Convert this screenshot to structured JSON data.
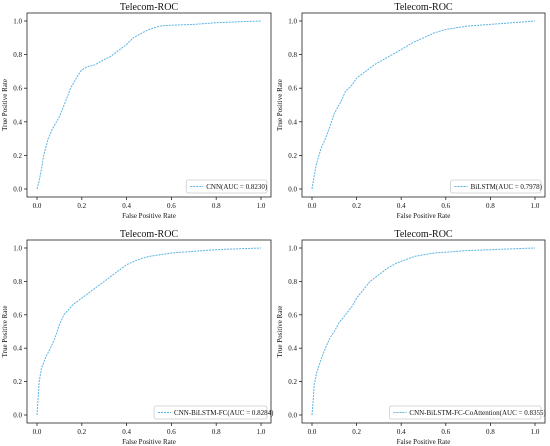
{
  "colors": {
    "curve": "#5ab4e5",
    "axis": "#222222",
    "legend_border": "#cccccc"
  },
  "chart_data": [
    {
      "type": "line",
      "title": "Telecom-ROC",
      "xlabel": "False Positive Rate",
      "ylabel": "True Positive Rate",
      "xlim": [
        0,
        1
      ],
      "ylim": [
        0,
        1
      ],
      "x_ticks": [
        "0.0",
        "0.2",
        "0.4",
        "0.6",
        "0.8",
        "1.0"
      ],
      "y_ticks": [
        "0.0",
        "0.2",
        "0.4",
        "0.6",
        "0.8",
        "1.0"
      ],
      "grid": false,
      "legend_position": "lower-right",
      "series": [
        {
          "name": "CNN(AUC = 0.8230)",
          "x": [
            0,
            0.01,
            0.02,
            0.03,
            0.05,
            0.07,
            0.1,
            0.13,
            0.15,
            0.18,
            0.2,
            0.23,
            0.26,
            0.3,
            0.33,
            0.36,
            0.4,
            0.43,
            0.47,
            0.5,
            0.55,
            0.6,
            0.7,
            0.8,
            0.9,
            1.0
          ],
          "y": [
            0,
            0.05,
            0.12,
            0.2,
            0.3,
            0.36,
            0.43,
            0.53,
            0.6,
            0.67,
            0.71,
            0.73,
            0.74,
            0.77,
            0.79,
            0.82,
            0.86,
            0.9,
            0.93,
            0.95,
            0.97,
            0.975,
            0.98,
            0.99,
            0.995,
            1.0
          ]
        }
      ]
    },
    {
      "type": "line",
      "title": "Telecom-ROC",
      "xlabel": "False Positive Rate",
      "ylabel": "True Positive Rate",
      "xlim": [
        0,
        1
      ],
      "ylim": [
        0,
        1
      ],
      "x_ticks": [
        "0.0",
        "0.2",
        "0.4",
        "0.6",
        "0.8",
        "1.0"
      ],
      "y_ticks": [
        "0.0",
        "0.2",
        "0.4",
        "0.6",
        "0.8",
        "1.0"
      ],
      "grid": false,
      "legend_position": "lower-right",
      "series": [
        {
          "name": "BiLSTM(AUC = 0.7978)",
          "x": [
            0,
            0.01,
            0.02,
            0.04,
            0.06,
            0.08,
            0.1,
            0.13,
            0.15,
            0.18,
            0.2,
            0.24,
            0.28,
            0.32,
            0.36,
            0.4,
            0.45,
            0.5,
            0.55,
            0.6,
            0.7,
            0.8,
            0.9,
            1.0
          ],
          "y": [
            0,
            0.08,
            0.15,
            0.24,
            0.3,
            0.37,
            0.45,
            0.52,
            0.58,
            0.62,
            0.66,
            0.7,
            0.74,
            0.77,
            0.8,
            0.83,
            0.87,
            0.9,
            0.93,
            0.95,
            0.97,
            0.98,
            0.99,
            1.0
          ]
        }
      ]
    },
    {
      "type": "line",
      "title": "Telecom-ROC",
      "xlabel": "False Positive Rate",
      "ylabel": "True Positive Rate",
      "xlim": [
        0,
        1
      ],
      "ylim": [
        0,
        1
      ],
      "x_ticks": [
        "0.0",
        "0.2",
        "0.4",
        "0.6",
        "0.8",
        "1.0"
      ],
      "y_ticks": [
        "0.0",
        "0.2",
        "0.4",
        "0.6",
        "0.8",
        "1.0"
      ],
      "grid": false,
      "legend_position": "lower-right",
      "series": [
        {
          "name": "CNN-BiLSTM-FC(AUC = 0.8284)",
          "x": [
            0,
            0.005,
            0.01,
            0.02,
            0.04,
            0.06,
            0.08,
            0.1,
            0.12,
            0.14,
            0.16,
            0.18,
            0.2,
            0.24,
            0.28,
            0.32,
            0.36,
            0.4,
            0.45,
            0.5,
            0.55,
            0.6,
            0.7,
            0.8,
            0.9,
            1.0
          ],
          "y": [
            0,
            0.1,
            0.2,
            0.28,
            0.35,
            0.4,
            0.46,
            0.54,
            0.6,
            0.63,
            0.66,
            0.68,
            0.7,
            0.74,
            0.78,
            0.82,
            0.86,
            0.9,
            0.93,
            0.95,
            0.96,
            0.97,
            0.98,
            0.99,
            0.995,
            1.0
          ]
        }
      ]
    },
    {
      "type": "line",
      "title": "Telecom-ROC",
      "xlabel": "False Positive Rate",
      "ylabel": "True Positive Rate",
      "xlim": [
        0,
        1
      ],
      "ylim": [
        0,
        1
      ],
      "x_ticks": [
        "0.0",
        "0.2",
        "0.4",
        "0.6",
        "0.8",
        "1.0"
      ],
      "y_ticks": [
        "0.0",
        "0.2",
        "0.4",
        "0.6",
        "0.8",
        "1.0"
      ],
      "grid": false,
      "legend_position": "lower-right",
      "series": [
        {
          "name": "CNN-BiLSTM-FC-CoAttention(AUC = 0.8355)",
          "x": [
            0,
            0.005,
            0.01,
            0.02,
            0.04,
            0.06,
            0.08,
            0.1,
            0.12,
            0.15,
            0.18,
            0.2,
            0.23,
            0.26,
            0.3,
            0.34,
            0.38,
            0.42,
            0.46,
            0.5,
            0.55,
            0.6,
            0.7,
            0.8,
            0.9,
            1.0
          ],
          "y": [
            0,
            0.08,
            0.18,
            0.25,
            0.33,
            0.4,
            0.46,
            0.5,
            0.55,
            0.6,
            0.65,
            0.7,
            0.75,
            0.8,
            0.84,
            0.88,
            0.91,
            0.93,
            0.95,
            0.96,
            0.97,
            0.975,
            0.985,
            0.99,
            0.995,
            1.0
          ]
        }
      ]
    }
  ]
}
